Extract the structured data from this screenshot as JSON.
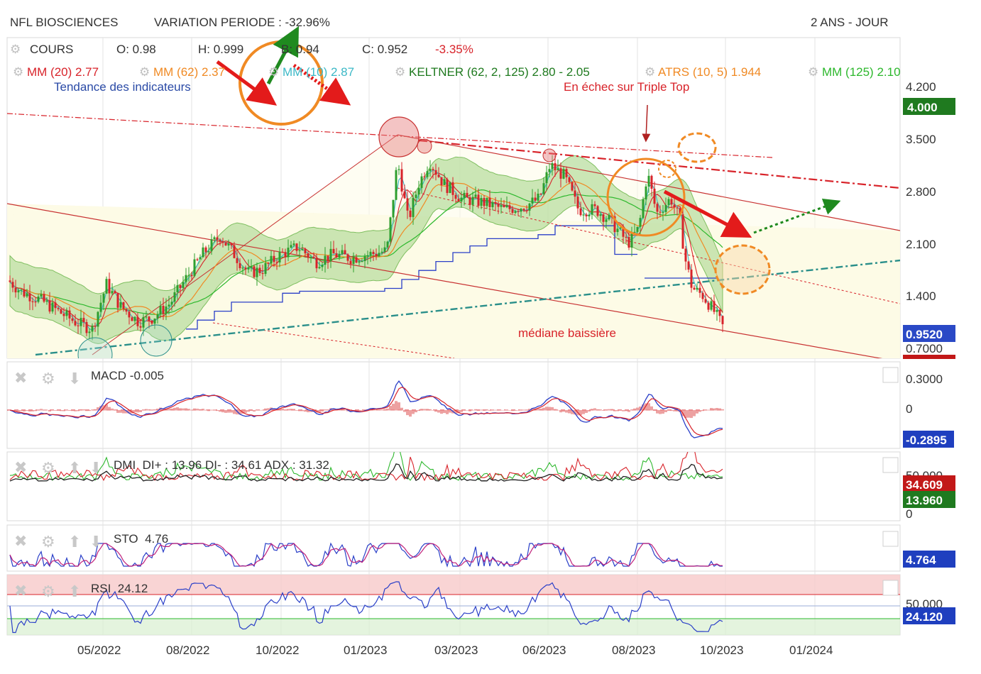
{
  "header": {
    "title": "NFL BIOSCIENCES",
    "variation": "VARIATION PERIODE : -32.96%",
    "period": "2 ANS - JOUR"
  },
  "ohlc": {
    "label": "COURS",
    "open": "O: 0.98",
    "high": "H: 0.999",
    "low": "B: 0.94",
    "close": "C: 0.952",
    "change": "-3.35%"
  },
  "indicators": [
    {
      "text": "MM (20)",
      "value": "2.77",
      "color": "#d8232a"
    },
    {
      "text": "MM (62)",
      "value": "2.37",
      "color": "#f08a24"
    },
    {
      "text": "MM (10)",
      "value": "2.87",
      "color": "#3bb8c6"
    },
    {
      "text": "KELTNER (62, 2, 125)",
      "value": "2.80 - 2.05",
      "color": "#1f7a1f"
    },
    {
      "text": "ATRS (10, 5)",
      "value": "1.944",
      "color": "#f08a24"
    },
    {
      "text": "MM (125)",
      "value": "2.10",
      "color": "#2db82d"
    }
  ],
  "annotations": {
    "trend": "Tendance des indicateurs",
    "triple_top": "En échec sur Triple Top",
    "median": "médiane baissière"
  },
  "price_axis": {
    "ticks": [
      "4.200",
      "3.500",
      "2.800",
      "2.100",
      "1.400",
      "0.7000"
    ],
    "badge_top": "4.000",
    "badge_last": "0.9520"
  },
  "x_axis": [
    "05/2022",
    "08/2022",
    "10/2022",
    "01/2023",
    "03/2023",
    "06/2023",
    "08/2023",
    "10/2023",
    "01/2024"
  ],
  "macd": {
    "label": "MACD",
    "value": "-0.005",
    "ticks": [
      "0.3000",
      "0"
    ],
    "badge": "-0.2895"
  },
  "dmi": {
    "label": "DMI",
    "value": "DI+ : 13.96 DI- : 34.61 ADX : 31.32",
    "ticks": [
      "50.000",
      "0"
    ],
    "badge_red": "34.609",
    "badge_green": "13.960"
  },
  "sto": {
    "label": "STO",
    "value": "4.76",
    "badge": "4.764"
  },
  "rsi": {
    "label": "RSI",
    "value": "24.12",
    "ticks": [
      "50.000"
    ],
    "badge": "24.120"
  },
  "colors": {
    "up": "#2e9e2e",
    "down": "#d8232a",
    "keltner_fill": "#b9dea0",
    "channel": "#fdfbe6",
    "badge_blue": "#1f3fbf",
    "badge_green": "#1f7a1f",
    "badge_red": "#c21818"
  },
  "chart_data": {
    "type": "line",
    "title": "NFL BIOSCIENCES",
    "ylim": [
      0.7,
      4.2
    ],
    "approx_close": [
      {
        "x": "2022-03",
        "y": 1.6
      },
      {
        "x": "2022-04",
        "y": 1.05
      },
      {
        "x": "2022-05",
        "y": 1.55
      },
      {
        "x": "2022-06",
        "y": 1.1
      },
      {
        "x": "2022-07",
        "y": 1.5
      },
      {
        "x": "2022-08",
        "y": 2.3
      },
      {
        "x": "2022-09",
        "y": 1.9
      },
      {
        "x": "2022-10",
        "y": 2.0
      },
      {
        "x": "2022-11",
        "y": 2.1
      },
      {
        "x": "2022-12",
        "y": 2.0
      },
      {
        "x": "2023-01",
        "y": 2.1
      },
      {
        "x": "2023-02",
        "y": 3.2
      },
      {
        "x": "2023-03",
        "y": 3.0
      },
      {
        "x": "2023-04",
        "y": 2.7
      },
      {
        "x": "2023-05",
        "y": 2.6
      },
      {
        "x": "2023-06",
        "y": 3.1
      },
      {
        "x": "2023-07",
        "y": 2.6
      },
      {
        "x": "2023-08",
        "y": 3.0
      },
      {
        "x": "2023-09",
        "y": 1.4
      },
      {
        "x": "2023-10",
        "y": 0.952
      }
    ]
  }
}
